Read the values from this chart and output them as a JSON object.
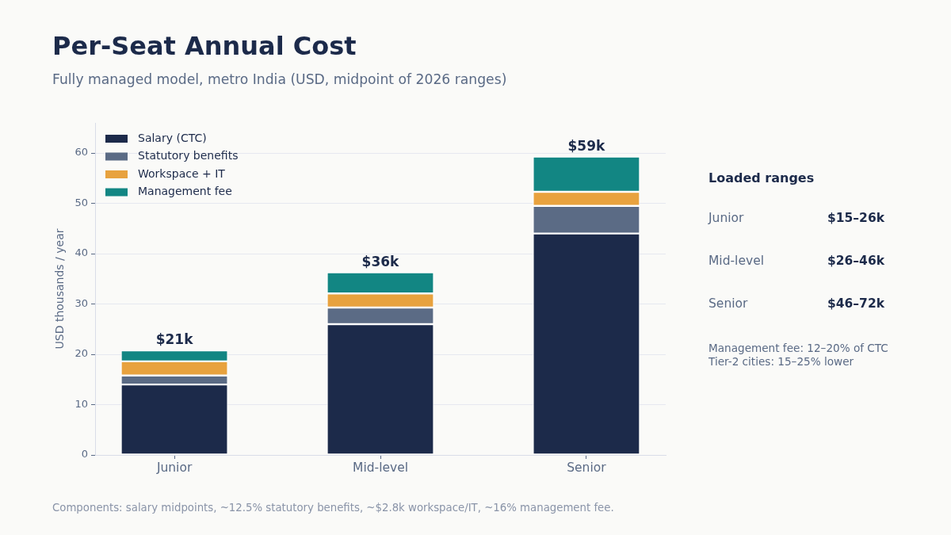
{
  "chart_data": [
    {
      "type": "bar",
      "title": "Per-Seat Annual Cost",
      "subtitle": "Fully managed model, metro India (USD, midpoint of 2026 ranges)",
      "ylabel": "USD thousands / year",
      "categories": [
        "Junior",
        "Mid-level",
        "Senior"
      ],
      "series": [
        {
          "name": "Salary (CTC)",
          "color": "#1c2a4a",
          "values": [
            14,
            26,
            44
          ]
        },
        {
          "name": "Statutory benefits",
          "color": "#5b6b85",
          "values": [
            1.8,
            3.3,
            5.5
          ]
        },
        {
          "name": "Workspace + IT",
          "color": "#e8a23e",
          "values": [
            2.8,
            2.8,
            2.8
          ]
        },
        {
          "name": "Management fee",
          "color": "#128683",
          "values": [
            2.2,
            4.2,
            7.0
          ]
        }
      ],
      "stacked": true,
      "ylim": [
        0,
        66
      ],
      "yticks": [
        0,
        10,
        20,
        30,
        40,
        50,
        60
      ],
      "totals": [
        "$21k",
        "$36k",
        "$59k"
      ],
      "grid": "y",
      "legend": "top left",
      "annotations": [
        "Components: salary midpoints, ~12.5% statutory benefits, ~$2.8k workspace/IT, ~16% management fee."
      ]
    },
    {
      "type": "other",
      "title": "Loaded ranges",
      "categories": [
        "Junior",
        "Mid-level",
        "Senior"
      ],
      "value_labels": [
        "$15–26k",
        "$26–46k",
        "$46–72k"
      ],
      "annotations": [
        "Management fee: 12–20% of CTC",
        "Tier-2 cities: 15–25% lower"
      ]
    }
  ]
}
